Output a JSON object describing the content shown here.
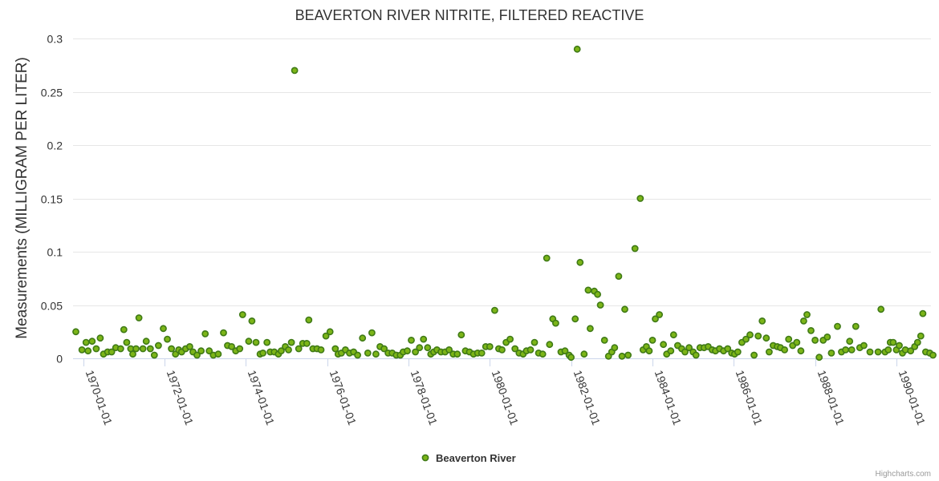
{
  "colors": {
    "point_fill": "#7cb518",
    "point_stroke": "#3f7a16"
  },
  "chart_data": {
    "type": "scatter",
    "title": "BEAVERTON RIVER NITRITE, FILTERED REACTIVE",
    "ylabel": "Measurements (MILLIGRAM PER LITER)",
    "xlabel": "",
    "ylim": [
      0,
      0.3
    ],
    "yticks": [
      0,
      0.05,
      0.1,
      0.15,
      0.2,
      0.25,
      0.3
    ],
    "ytick_labels": [
      "0",
      "0.05",
      "0.1",
      "0.15",
      "0.2",
      "0.25",
      "0.3"
    ],
    "xlim": [
      1969.75,
      1990.85
    ],
    "xticks": [
      1970,
      1972,
      1974,
      1976,
      1978,
      1980,
      1982,
      1984,
      1986,
      1988,
      1990
    ],
    "xtick_labels": [
      "1970-01-01",
      "1972-01-01",
      "1974-01-01",
      "1976-01-01",
      "1978-01-01",
      "1980-01-01",
      "1982-01-01",
      "1984-01-01",
      "1986-01-01",
      "1988-01-01",
      "1990-01-01"
    ],
    "legend": "bottom-center",
    "credits": "Highcharts.com",
    "series": [
      {
        "name": "Beaverton River",
        "points": [
          [
            1969.82,
            0.025
          ],
          [
            1969.97,
            0.008
          ],
          [
            1970.07,
            0.015
          ],
          [
            1970.12,
            0.007
          ],
          [
            1970.22,
            0.016
          ],
          [
            1970.32,
            0.009
          ],
          [
            1970.42,
            0.019
          ],
          [
            1970.5,
            0.004
          ],
          [
            1970.6,
            0.006
          ],
          [
            1970.7,
            0.006
          ],
          [
            1970.8,
            0.01
          ],
          [
            1970.92,
            0.009
          ],
          [
            1971.0,
            0.027
          ],
          [
            1971.07,
            0.015
          ],
          [
            1971.17,
            0.009
          ],
          [
            1971.22,
            0.004
          ],
          [
            1971.3,
            0.009
          ],
          [
            1971.37,
            0.038
          ],
          [
            1971.47,
            0.009
          ],
          [
            1971.55,
            0.016
          ],
          [
            1971.65,
            0.009
          ],
          [
            1971.75,
            0.003
          ],
          [
            1971.85,
            0.012
          ],
          [
            1971.97,
            0.028
          ],
          [
            1972.07,
            0.018
          ],
          [
            1972.17,
            0.009
          ],
          [
            1972.27,
            0.004
          ],
          [
            1972.35,
            0.008
          ],
          [
            1972.42,
            0.006
          ],
          [
            1972.52,
            0.009
          ],
          [
            1972.62,
            0.011
          ],
          [
            1972.7,
            0.006
          ],
          [
            1972.8,
            0.003
          ],
          [
            1972.9,
            0.007
          ],
          [
            1973.0,
            0.023
          ],
          [
            1973.1,
            0.007
          ],
          [
            1973.2,
            0.003
          ],
          [
            1973.32,
            0.004
          ],
          [
            1973.45,
            0.024
          ],
          [
            1973.55,
            0.012
          ],
          [
            1973.65,
            0.011
          ],
          [
            1973.75,
            0.007
          ],
          [
            1973.85,
            0.009
          ],
          [
            1973.92,
            0.041
          ],
          [
            1974.07,
            0.016
          ],
          [
            1974.15,
            0.035
          ],
          [
            1974.25,
            0.015
          ],
          [
            1974.35,
            0.004
          ],
          [
            1974.42,
            0.005
          ],
          [
            1974.52,
            0.015
          ],
          [
            1974.6,
            0.006
          ],
          [
            1974.7,
            0.006
          ],
          [
            1974.8,
            0.004
          ],
          [
            1974.87,
            0.007
          ],
          [
            1974.97,
            0.011
          ],
          [
            1975.05,
            0.008
          ],
          [
            1975.12,
            0.015
          ],
          [
            1975.2,
            0.27
          ],
          [
            1975.3,
            0.009
          ],
          [
            1975.4,
            0.014
          ],
          [
            1975.5,
            0.014
          ],
          [
            1975.55,
            0.036
          ],
          [
            1975.65,
            0.009
          ],
          [
            1975.75,
            0.009
          ],
          [
            1975.85,
            0.008
          ],
          [
            1975.97,
            0.021
          ],
          [
            1976.07,
            0.025
          ],
          [
            1976.2,
            0.009
          ],
          [
            1976.27,
            0.004
          ],
          [
            1976.35,
            0.005
          ],
          [
            1976.45,
            0.008
          ],
          [
            1976.55,
            0.005
          ],
          [
            1976.65,
            0.006
          ],
          [
            1976.75,
            0.003
          ],
          [
            1976.87,
            0.019
          ],
          [
            1977.0,
            0.005
          ],
          [
            1977.1,
            0.024
          ],
          [
            1977.2,
            0.004
          ],
          [
            1977.3,
            0.011
          ],
          [
            1977.4,
            0.009
          ],
          [
            1977.5,
            0.005
          ],
          [
            1977.6,
            0.005
          ],
          [
            1977.7,
            0.003
          ],
          [
            1977.8,
            0.003
          ],
          [
            1977.87,
            0.006
          ],
          [
            1977.97,
            0.007
          ],
          [
            1978.07,
            0.017
          ],
          [
            1978.17,
            0.006
          ],
          [
            1978.27,
            0.01
          ],
          [
            1978.37,
            0.018
          ],
          [
            1978.47,
            0.01
          ],
          [
            1978.55,
            0.004
          ],
          [
            1978.62,
            0.006
          ],
          [
            1978.7,
            0.008
          ],
          [
            1978.8,
            0.006
          ],
          [
            1978.9,
            0.006
          ],
          [
            1979.0,
            0.008
          ],
          [
            1979.1,
            0.004
          ],
          [
            1979.2,
            0.004
          ],
          [
            1979.3,
            0.022
          ],
          [
            1979.4,
            0.007
          ],
          [
            1979.5,
            0.006
          ],
          [
            1979.6,
            0.004
          ],
          [
            1979.7,
            0.005
          ],
          [
            1979.8,
            0.005
          ],
          [
            1979.9,
            0.011
          ],
          [
            1980.0,
            0.011
          ],
          [
            1980.12,
            0.045
          ],
          [
            1980.22,
            0.009
          ],
          [
            1980.3,
            0.008
          ],
          [
            1980.4,
            0.015
          ],
          [
            1980.5,
            0.018
          ],
          [
            1980.62,
            0.009
          ],
          [
            1980.72,
            0.005
          ],
          [
            1980.82,
            0.004
          ],
          [
            1980.9,
            0.007
          ],
          [
            1981.0,
            0.008
          ],
          [
            1981.1,
            0.015
          ],
          [
            1981.2,
            0.005
          ],
          [
            1981.3,
            0.004
          ],
          [
            1981.4,
            0.094
          ],
          [
            1981.47,
            0.013
          ],
          [
            1981.55,
            0.037
          ],
          [
            1981.62,
            0.033
          ],
          [
            1981.75,
            0.006
          ],
          [
            1981.85,
            0.007
          ],
          [
            1981.95,
            0.003
          ],
          [
            1982.0,
            0.001
          ],
          [
            1982.1,
            0.037
          ],
          [
            1982.15,
            0.29
          ],
          [
            1982.22,
            0.09
          ],
          [
            1982.32,
            0.004
          ],
          [
            1982.42,
            0.064
          ],
          [
            1982.47,
            0.028
          ],
          [
            1982.57,
            0.063
          ],
          [
            1982.65,
            0.06
          ],
          [
            1982.72,
            0.05
          ],
          [
            1982.82,
            0.017
          ],
          [
            1982.92,
            0.002
          ],
          [
            1983.0,
            0.006
          ],
          [
            1983.07,
            0.01
          ],
          [
            1983.17,
            0.077
          ],
          [
            1983.25,
            0.002
          ],
          [
            1983.32,
            0.046
          ],
          [
            1983.4,
            0.003
          ],
          [
            1983.57,
            0.103
          ],
          [
            1983.7,
            0.15
          ],
          [
            1983.77,
            0.008
          ],
          [
            1983.85,
            0.011
          ],
          [
            1983.92,
            0.007
          ],
          [
            1984.0,
            0.017
          ],
          [
            1984.07,
            0.037
          ],
          [
            1984.17,
            0.041
          ],
          [
            1984.27,
            0.013
          ],
          [
            1984.35,
            0.004
          ],
          [
            1984.45,
            0.007
          ],
          [
            1984.52,
            0.022
          ],
          [
            1984.62,
            0.012
          ],
          [
            1984.72,
            0.009
          ],
          [
            1984.8,
            0.006
          ],
          [
            1984.9,
            0.01
          ],
          [
            1985.0,
            0.006
          ],
          [
            1985.07,
            0.003
          ],
          [
            1985.17,
            0.01
          ],
          [
            1985.27,
            0.01
          ],
          [
            1985.37,
            0.011
          ],
          [
            1985.47,
            0.008
          ],
          [
            1985.55,
            0.007
          ],
          [
            1985.65,
            0.009
          ],
          [
            1985.75,
            0.007
          ],
          [
            1985.85,
            0.009
          ],
          [
            1985.95,
            0.005
          ],
          [
            1986.02,
            0.004
          ],
          [
            1986.1,
            0.006
          ],
          [
            1986.2,
            0.015
          ],
          [
            1986.3,
            0.018
          ],
          [
            1986.4,
            0.022
          ],
          [
            1986.5,
            0.003
          ],
          [
            1986.6,
            0.021
          ],
          [
            1986.7,
            0.035
          ],
          [
            1986.8,
            0.019
          ],
          [
            1986.87,
            0.006
          ],
          [
            1986.97,
            0.012
          ],
          [
            1987.07,
            0.011
          ],
          [
            1987.15,
            0.01
          ],
          [
            1987.25,
            0.008
          ],
          [
            1987.35,
            0.018
          ],
          [
            1987.45,
            0.012
          ],
          [
            1987.55,
            0.015
          ],
          [
            1987.65,
            0.007
          ],
          [
            1987.72,
            0.035
          ],
          [
            1987.8,
            0.041
          ],
          [
            1987.9,
            0.026
          ],
          [
            1988.0,
            0.017
          ],
          [
            1988.1,
            0.001
          ],
          [
            1988.2,
            0.017
          ],
          [
            1988.3,
            0.02
          ],
          [
            1988.4,
            0.005
          ],
          [
            1988.55,
            0.03
          ],
          [
            1988.65,
            0.006
          ],
          [
            1988.75,
            0.008
          ],
          [
            1988.85,
            0.016
          ],
          [
            1988.9,
            0.008
          ],
          [
            1989.0,
            0.03
          ],
          [
            1989.1,
            0.01
          ],
          [
            1989.2,
            0.012
          ],
          [
            1989.35,
            0.006
          ],
          [
            1989.55,
            0.006
          ],
          [
            1989.62,
            0.046
          ],
          [
            1989.72,
            0.006
          ],
          [
            1989.8,
            0.008
          ],
          [
            1989.85,
            0.015
          ],
          [
            1989.92,
            0.015
          ],
          [
            1990.0,
            0.008
          ],
          [
            1990.07,
            0.012
          ],
          [
            1990.15,
            0.005
          ],
          [
            1990.22,
            0.008
          ],
          [
            1990.35,
            0.007
          ],
          [
            1990.45,
            0.011
          ],
          [
            1990.52,
            0.015
          ],
          [
            1990.6,
            0.021
          ],
          [
            1990.65,
            0.042
          ],
          [
            1990.72,
            0.006
          ],
          [
            1990.82,
            0.005
          ],
          [
            1990.9,
            0.003
          ]
        ]
      }
    ]
  }
}
